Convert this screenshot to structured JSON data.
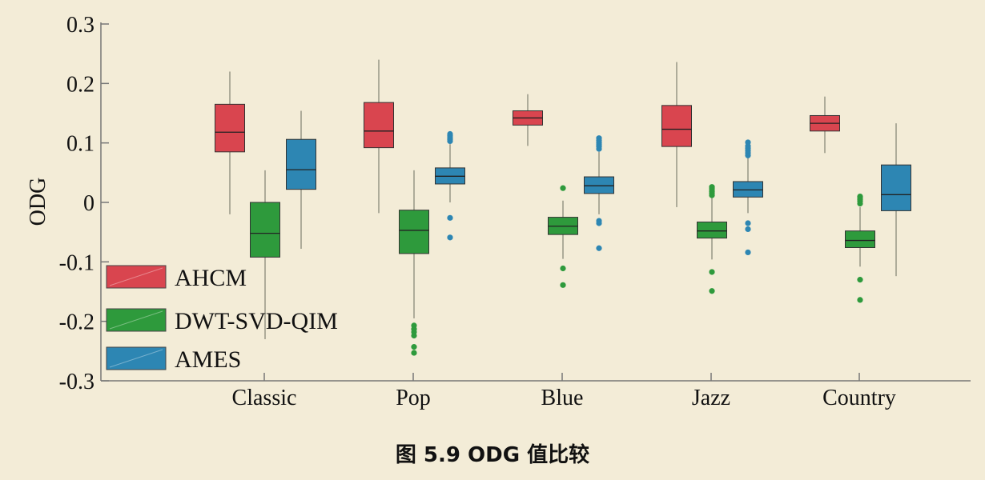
{
  "caption": "图 5.9 ODG 值比较",
  "chart_data": {
    "type": "box",
    "ylabel": "ODG",
    "xlabel": "",
    "ylim": [
      -0.3,
      0.3
    ],
    "yticks": [
      "0.3",
      "0.2",
      "0.1",
      "0",
      "-0.1",
      "-0.2",
      "-0.3"
    ],
    "categories": [
      "Classic",
      "Pop",
      "Blue",
      "Jazz",
      "Country"
    ],
    "legend_position": "bottom-left",
    "series": [
      {
        "name": "AHCM",
        "color": "#d9454f",
        "boxes": [
          {
            "category": "Classic",
            "whisker_low": -0.02,
            "q1": 0.085,
            "median": 0.118,
            "q3": 0.165,
            "whisker_high": 0.22,
            "outliers": []
          },
          {
            "category": "Pop",
            "whisker_low": -0.018,
            "q1": 0.092,
            "median": 0.12,
            "q3": 0.168,
            "whisker_high": 0.24,
            "outliers": []
          },
          {
            "category": "Blue",
            "whisker_low": 0.095,
            "q1": 0.13,
            "median": 0.142,
            "q3": 0.154,
            "whisker_high": 0.182,
            "outliers": []
          },
          {
            "category": "Jazz",
            "whisker_low": -0.008,
            "q1": 0.094,
            "median": 0.123,
            "q3": 0.163,
            "whisker_high": 0.236,
            "outliers": []
          },
          {
            "category": "Country",
            "whisker_low": 0.083,
            "q1": 0.12,
            "median": 0.133,
            "q3": 0.146,
            "whisker_high": 0.178,
            "outliers": []
          }
        ]
      },
      {
        "name": "DWT-SVD-QIM",
        "color": "#2e9a3c",
        "boxes": [
          {
            "category": "Classic",
            "whisker_low": -0.23,
            "q1": -0.092,
            "median": -0.052,
            "q3": 0.0,
            "whisker_high": 0.054,
            "outliers": []
          },
          {
            "category": "Pop",
            "whisker_low": -0.195,
            "q1": -0.086,
            "median": -0.047,
            "q3": -0.013,
            "whisker_high": 0.054,
            "outliers": [
              -0.207,
              -0.213,
              -0.218,
              -0.224,
              -0.243,
              -0.253
            ]
          },
          {
            "category": "Blue",
            "whisker_low": -0.095,
            "q1": -0.054,
            "median": -0.04,
            "q3": -0.025,
            "whisker_high": 0.003,
            "outliers": [
              0.024,
              -0.111,
              -0.139
            ]
          },
          {
            "category": "Jazz",
            "whisker_low": -0.096,
            "q1": -0.06,
            "median": -0.048,
            "q3": -0.033,
            "whisker_high": 0.008,
            "outliers": [
              0.012,
              0.015,
              0.018,
              0.021,
              0.024,
              0.026,
              -0.117,
              -0.149
            ]
          },
          {
            "category": "Country",
            "whisker_low": -0.108,
            "q1": -0.076,
            "median": -0.064,
            "q3": -0.048,
            "whisker_high": -0.008,
            "outliers": [
              -0.002,
              0.002,
              0.005,
              0.008,
              0.01,
              -0.13,
              -0.164
            ]
          }
        ]
      },
      {
        "name": "AMES",
        "color": "#2d86b3",
        "boxes": [
          {
            "category": "Classic",
            "whisker_low": -0.078,
            "q1": 0.022,
            "median": 0.055,
            "q3": 0.106,
            "whisker_high": 0.154,
            "outliers": []
          },
          {
            "category": "Pop",
            "whisker_low": 0.0,
            "q1": 0.031,
            "median": 0.044,
            "q3": 0.058,
            "whisker_high": 0.098,
            "outliers": [
              0.103,
              0.106,
              0.109,
              0.112,
              0.115,
              -0.026,
              -0.059
            ]
          },
          {
            "category": "Blue",
            "whisker_low": -0.02,
            "q1": 0.015,
            "median": 0.028,
            "q3": 0.043,
            "whisker_high": 0.085,
            "outliers": [
              0.09,
              0.094,
              0.097,
              0.1,
              0.104,
              0.108,
              -0.031,
              -0.035,
              -0.077
            ]
          },
          {
            "category": "Jazz",
            "whisker_low": -0.018,
            "q1": 0.009,
            "median": 0.021,
            "q3": 0.035,
            "whisker_high": 0.075,
            "outliers": [
              0.079,
              0.083,
              0.087,
              0.091,
              0.095,
              0.101,
              -0.035,
              -0.045,
              -0.084
            ]
          },
          {
            "category": "Country",
            "whisker_low": -0.124,
            "q1": -0.014,
            "median": 0.013,
            "q3": 0.063,
            "whisker_high": 0.133,
            "outliers": []
          }
        ]
      }
    ]
  }
}
